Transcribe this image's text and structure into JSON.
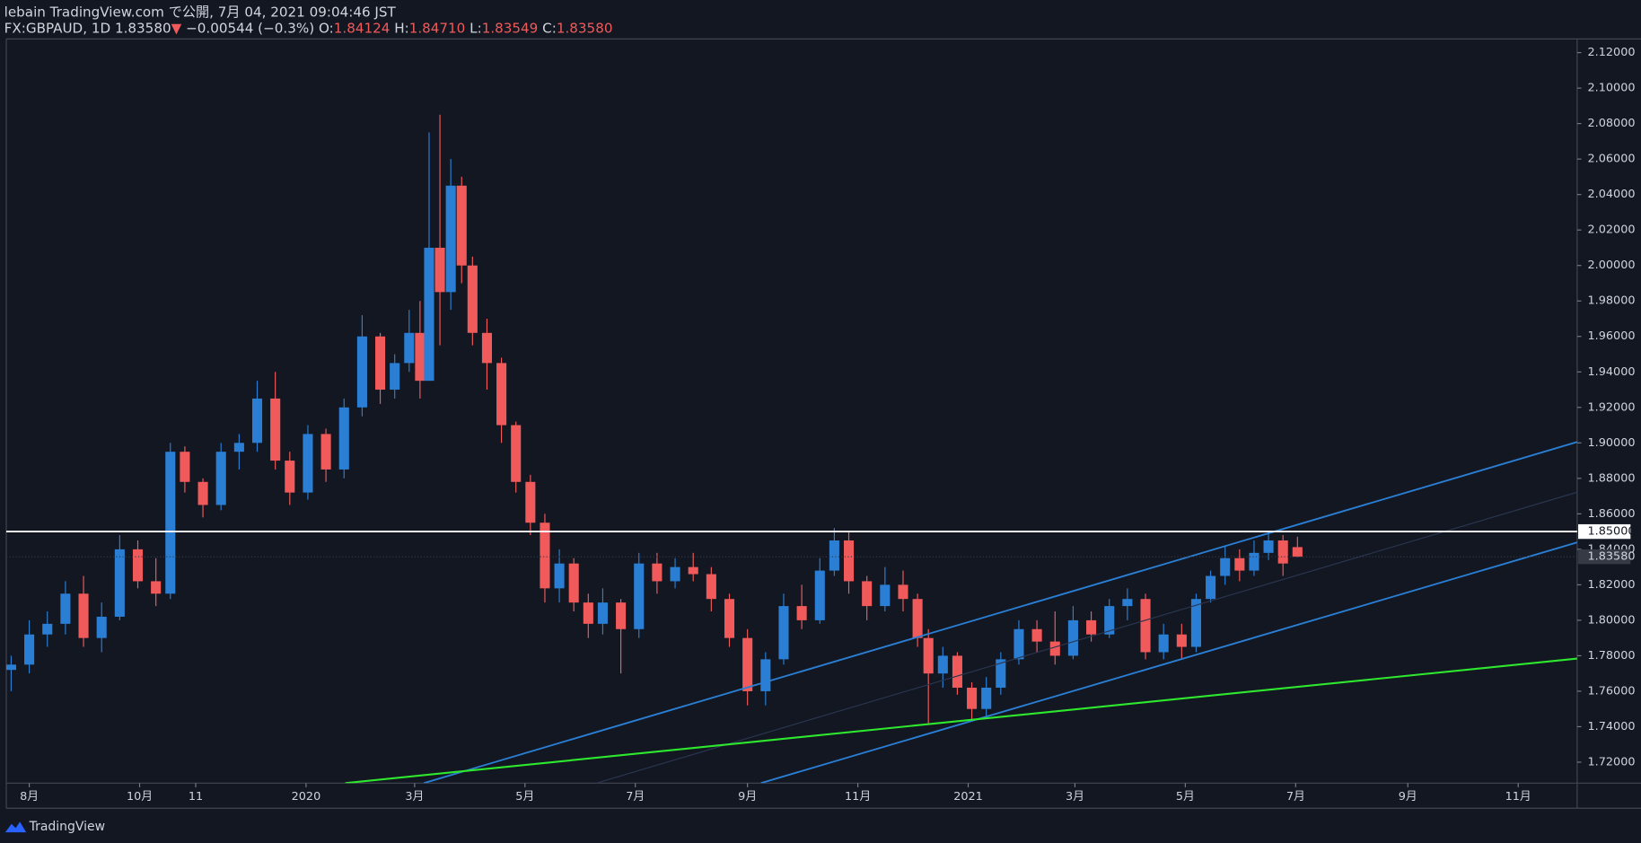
{
  "chart_data": {
    "type": "candlestick",
    "header": {
      "publisher": "lebain TradingView.com で公開, 7月 04, 2021 09:04:46 JST",
      "symbol": "FX:GBPAUD, 1D",
      "last": "1.83580",
      "arrow": "▼",
      "change": "−0.00544 (−0.3%)",
      "o_label": "O:",
      "o": "1.84124",
      "h_label": "H:",
      "h": "1.84710",
      "l_label": "L:",
      "l": "1.83549",
      "c_label": "C:",
      "c": "1.83580"
    },
    "brand": "TradingView",
    "up_color": "#2a7fd4",
    "down_color": "#f05a5a",
    "x": [
      21,
      31,
      41,
      51,
      61,
      71,
      81,
      91,
      101,
      109,
      117,
      127,
      137,
      147,
      157,
      167,
      175,
      185,
      195,
      205,
      215,
      225,
      233,
      241,
      247,
      252,
      258,
      264,
      270,
      276,
      284,
      292,
      300,
      308,
      316,
      324,
      332,
      340,
      348,
      358,
      368,
      378,
      388,
      398,
      408,
      418,
      428,
      438,
      448,
      458,
      468,
      476,
      484,
      494,
      504,
      514,
      522,
      528,
      536,
      544,
      552,
      560,
      568,
      578,
      588,
      598,
      608,
      618,
      628,
      638,
      648,
      658,
      668,
      676,
      684,
      692,
      700,
      708,
      716,
      724,
      732
    ],
    "open": [
      1.772,
      1.775,
      1.792,
      1.798,
      1.815,
      1.79,
      1.802,
      1.84,
      1.822,
      1.815,
      1.895,
      1.878,
      1.865,
      1.895,
      1.9,
      1.925,
      1.89,
      1.872,
      1.905,
      1.885,
      1.92,
      1.96,
      1.93,
      1.945,
      1.962,
      1.935,
      2.01,
      1.985,
      2.045,
      2.0,
      1.962,
      1.945,
      1.91,
      1.878,
      1.855,
      1.818,
      1.832,
      1.81,
      1.798,
      1.81,
      1.795,
      1.832,
      1.822,
      1.83,
      1.826,
      1.812,
      1.79,
      1.76,
      1.778,
      1.808,
      1.8,
      1.828,
      1.845,
      1.822,
      1.808,
      1.82,
      1.812,
      1.79,
      1.77,
      1.78,
      1.762,
      1.75,
      1.762,
      1.778,
      1.795,
      1.788,
      1.78,
      1.8,
      1.792,
      1.808,
      1.812,
      1.782,
      1.792,
      1.785,
      1.812,
      1.825,
      1.835,
      1.828,
      1.838,
      1.845,
      1.84124
    ],
    "high": [
      1.78,
      1.8,
      1.805,
      1.822,
      1.825,
      1.81,
      1.848,
      1.845,
      1.835,
      1.9,
      1.898,
      1.88,
      1.9,
      1.905,
      1.935,
      1.94,
      1.895,
      1.91,
      1.908,
      1.925,
      1.972,
      1.962,
      1.95,
      1.975,
      1.98,
      2.075,
      2.085,
      2.06,
      2.05,
      2.005,
      1.97,
      1.948,
      1.912,
      1.882,
      1.86,
      1.84,
      1.835,
      1.815,
      1.818,
      1.812,
      1.838,
      1.838,
      1.835,
      1.838,
      1.83,
      1.815,
      1.795,
      1.782,
      1.815,
      1.82,
      1.835,
      1.852,
      1.85,
      1.825,
      1.83,
      1.828,
      1.815,
      1.795,
      1.785,
      1.782,
      1.765,
      1.768,
      1.782,
      1.8,
      1.8,
      1.805,
      1.808,
      1.805,
      1.812,
      1.818,
      1.815,
      1.798,
      1.798,
      1.815,
      1.828,
      1.842,
      1.84,
      1.845,
      1.85,
      1.848,
      1.8471
    ],
    "low": [
      1.76,
      1.77,
      1.785,
      1.792,
      1.785,
      1.782,
      1.8,
      1.818,
      1.808,
      1.812,
      1.872,
      1.858,
      1.862,
      1.885,
      1.895,
      1.885,
      1.865,
      1.868,
      1.878,
      1.88,
      1.915,
      1.922,
      1.925,
      1.94,
      1.925,
      1.935,
      1.955,
      1.975,
      1.99,
      1.955,
      1.93,
      1.9,
      1.872,
      1.848,
      1.81,
      1.81,
      1.805,
      1.79,
      1.792,
      1.77,
      1.79,
      1.815,
      1.818,
      1.822,
      1.805,
      1.785,
      1.752,
      1.752,
      1.775,
      1.795,
      1.798,
      1.825,
      1.815,
      1.8,
      1.805,
      1.805,
      1.785,
      1.742,
      1.762,
      1.758,
      1.743,
      1.745,
      1.758,
      1.775,
      1.782,
      1.775,
      1.778,
      1.788,
      1.79,
      1.8,
      1.778,
      1.778,
      1.778,
      1.782,
      1.81,
      1.82,
      1.822,
      1.825,
      1.834,
      1.825,
      1.83549
    ],
    "close": [
      1.775,
      1.792,
      1.798,
      1.815,
      1.79,
      1.802,
      1.84,
      1.822,
      1.815,
      1.895,
      1.878,
      1.865,
      1.895,
      1.9,
      1.925,
      1.89,
      1.872,
      1.905,
      1.885,
      1.92,
      1.96,
      1.93,
      1.945,
      1.962,
      1.935,
      2.01,
      1.985,
      2.045,
      2.0,
      1.962,
      1.945,
      1.91,
      1.878,
      1.855,
      1.818,
      1.832,
      1.81,
      1.798,
      1.81,
      1.795,
      1.832,
      1.822,
      1.83,
      1.826,
      1.812,
      1.79,
      1.76,
      1.778,
      1.808,
      1.8,
      1.828,
      1.845,
      1.822,
      1.808,
      1.82,
      1.812,
      1.79,
      1.77,
      1.78,
      1.762,
      1.75,
      1.762,
      1.778,
      1.795,
      1.788,
      1.78,
      1.8,
      1.792,
      1.808,
      1.812,
      1.782,
      1.792,
      1.785,
      1.812,
      1.825,
      1.835,
      1.828,
      1.838,
      1.845,
      1.832,
      1.8358
    ],
    "xlim": [
      18.3,
      886.6
    ],
    "ylim": [
      1.7082,
      2.1277
    ],
    "xticks": [
      {
        "value": 31,
        "label": "8月"
      },
      {
        "value": 92,
        "label": "10月"
      },
      {
        "value": 123,
        "label": "11"
      },
      {
        "value": 184,
        "label": "2020"
      },
      {
        "value": 244,
        "label": "3月"
      },
      {
        "value": 305,
        "label": "5月"
      },
      {
        "value": 366,
        "label": "7月"
      },
      {
        "value": 428,
        "label": "9月"
      },
      {
        "value": 489,
        "label": "11月"
      },
      {
        "value": 550,
        "label": "2021"
      },
      {
        "value": 609,
        "label": "3月"
      },
      {
        "value": 670,
        "label": "5月"
      },
      {
        "value": 731,
        "label": "7月"
      },
      {
        "value": 793,
        "label": "9月"
      },
      {
        "value": 854,
        "label": "11月"
      }
    ],
    "yticks": [
      {
        "value": 2.12,
        "label": "2.12000"
      },
      {
        "value": 2.1,
        "label": "2.10000"
      },
      {
        "value": 2.08,
        "label": "2.08000"
      },
      {
        "value": 2.06,
        "label": "2.06000"
      },
      {
        "value": 2.04,
        "label": "2.04000"
      },
      {
        "value": 2.02,
        "label": "2.02000"
      },
      {
        "value": 2.0,
        "label": "2.00000"
      },
      {
        "value": 1.98,
        "label": "1.98000"
      },
      {
        "value": 1.96,
        "label": "1.96000"
      },
      {
        "value": 1.94,
        "label": "1.94000"
      },
      {
        "value": 1.92,
        "label": "1.92000"
      },
      {
        "value": 1.9,
        "label": "1.90000"
      },
      {
        "value": 1.88,
        "label": "1.88000"
      },
      {
        "value": 1.86,
        "label": "1.86000"
      },
      {
        "value": 1.84,
        "label": "1.84000"
      },
      {
        "value": 1.82,
        "label": "1.82000"
      },
      {
        "value": 1.8,
        "label": "1.80000"
      },
      {
        "value": 1.78,
        "label": "1.78000"
      },
      {
        "value": 1.76,
        "label": "1.76000"
      },
      {
        "value": 1.74,
        "label": "1.74000"
      },
      {
        "value": 1.72,
        "label": "1.72000"
      }
    ],
    "hline": {
      "value": 1.85,
      "label": "1.85000",
      "color": "#ffffff"
    },
    "trendlines": [
      {
        "x": [
          249.1,
          886.6
        ],
        "y": [
          1.7082,
          1.9005
        ],
        "color": "#2a7fd4",
        "width": 1.6
      },
      {
        "x": [
          435.4,
          886.6
        ],
        "y": [
          1.7082,
          1.8439
        ],
        "color": "#2a7fd4",
        "width": 1.6
      },
      {
        "x": [
          344.5,
          886.6
        ],
        "y": [
          1.7082,
          1.8722
        ],
        "color": "#2a3550",
        "width": 1
      },
      {
        "x": [
          205.7,
          886.6
        ],
        "y": [
          1.7082,
          1.7784
        ],
        "color": "#2ee82e",
        "width": 1.8
      }
    ],
    "grid": false
  }
}
